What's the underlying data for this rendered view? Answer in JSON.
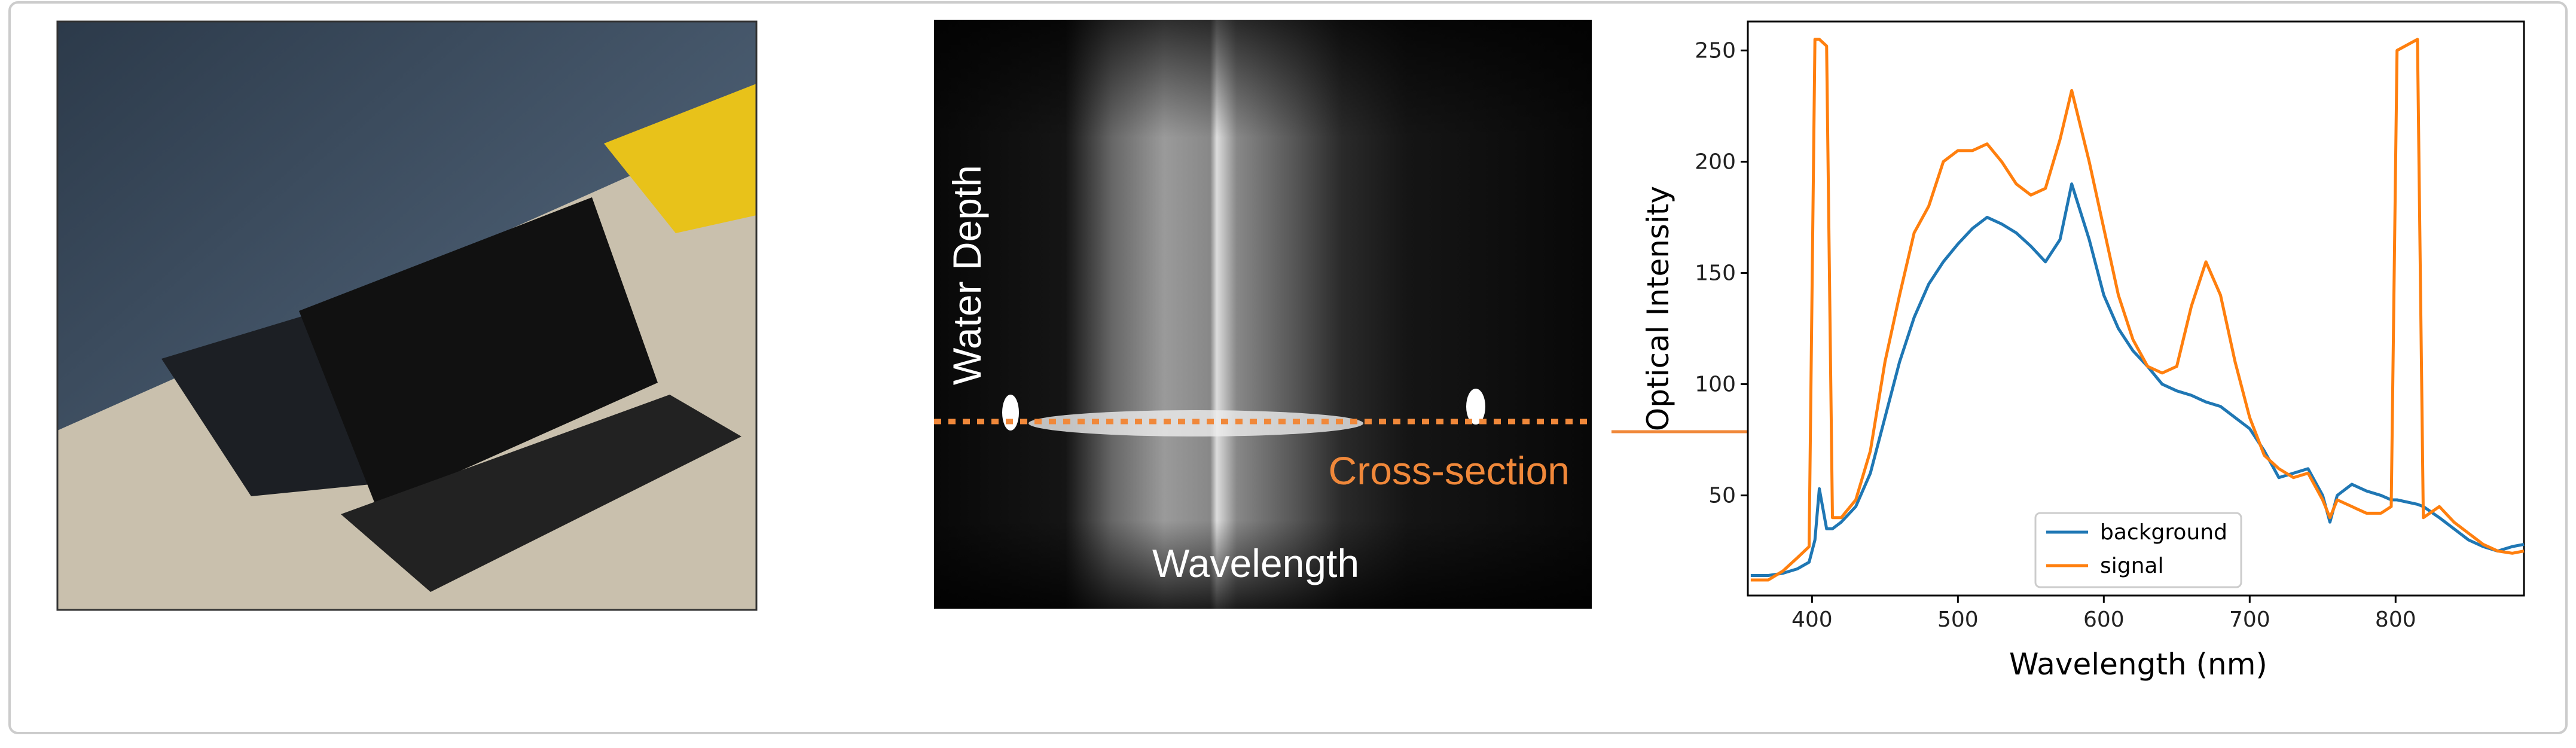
{
  "figure": {
    "photo_labels": {
      "depth": "Water Depth",
      "section": "Cross-section",
      "wavelength": "Wavelength"
    }
  },
  "chart_data": {
    "type": "line",
    "x_label": "Wavelength (nm)",
    "y_label": "Optical Intensity",
    "x": [
      358,
      370,
      380,
      390,
      398,
      402,
      405,
      410,
      414,
      420,
      430,
      440,
      450,
      460,
      470,
      480,
      490,
      500,
      510,
      520,
      530,
      540,
      550,
      560,
      570,
      578,
      590,
      600,
      610,
      620,
      630,
      640,
      650,
      660,
      670,
      680,
      690,
      700,
      710,
      720,
      730,
      740,
      750,
      755,
      760,
      770,
      780,
      790,
      797,
      801,
      815,
      819,
      830,
      840,
      850,
      860,
      870,
      880,
      888
    ],
    "series": [
      {
        "name": "background",
        "color": "#1f77b4",
        "values": [
          14,
          14,
          15,
          17,
          20,
          30,
          53,
          35,
          35,
          38,
          45,
          60,
          85,
          110,
          130,
          145,
          155,
          163,
          170,
          175,
          172,
          168,
          162,
          155,
          165,
          190,
          165,
          140,
          125,
          115,
          108,
          100,
          97,
          95,
          92,
          90,
          85,
          80,
          70,
          58,
          60,
          62,
          50,
          38,
          50,
          55,
          52,
          50,
          48,
          48,
          46,
          45,
          40,
          35,
          30,
          27,
          25,
          27,
          28
        ]
      },
      {
        "name": "signal",
        "color": "#ff7f0e",
        "values": [
          12,
          12,
          16,
          22,
          27,
          255,
          255,
          252,
          40,
          40,
          48,
          70,
          110,
          140,
          168,
          180,
          200,
          205,
          205,
          208,
          200,
          190,
          185,
          188,
          210,
          232,
          200,
          170,
          140,
          120,
          108,
          105,
          108,
          135,
          155,
          140,
          110,
          85,
          68,
          62,
          58,
          60,
          48,
          40,
          48,
          45,
          42,
          42,
          45,
          250,
          255,
          40,
          45,
          38,
          33,
          28,
          25,
          24,
          25
        ]
      }
    ],
    "xlim": [
      356,
      888
    ],
    "ylim": [
      5,
      263
    ],
    "xticks": [
      400,
      500,
      600,
      700,
      800
    ],
    "yticks": [
      50,
      100,
      150,
      200,
      250
    ],
    "legend": "lower center",
    "grid": false
  }
}
